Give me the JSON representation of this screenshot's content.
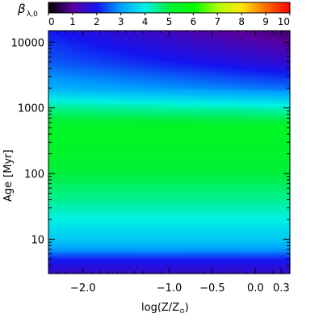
{
  "chart_data": {
    "type": "heatmap",
    "title": "",
    "colorbar": {
      "label": "β",
      "label_sub": "λ,0",
      "min": 0,
      "max": 10,
      "ticks": [
        "0",
        "1",
        "2",
        "3",
        "4",
        "5",
        "6",
        "7",
        "8",
        "9",
        "10"
      ],
      "colormap": "rainbow (black-purple-blue-cyan-green-yellow-orange-red)"
    },
    "xlabel": "log(Z/Z",
    "xlabel_sub": "⊙",
    "xlabel_close": ")",
    "ylabel": "Age",
    "ylabel_unit": "[Myr]",
    "x_scale": "linear",
    "y_scale": "log",
    "xlim": [
      -2.4,
      0.4
    ],
    "ylim": [
      3,
      15000
    ],
    "x_ticks": [
      {
        "value": -2.0,
        "label": "−2.0"
      },
      {
        "value": -1.0,
        "label": "−1.0"
      },
      {
        "value": -0.5,
        "label": "−0.5"
      },
      {
        "value": 0.0,
        "label": "0.0"
      },
      {
        "value": 0.3,
        "label": "0.3"
      }
    ],
    "y_ticks": [
      {
        "value": 10,
        "label": "10"
      },
      {
        "value": 100,
        "label": "100"
      },
      {
        "value": 1000,
        "label": "1000"
      },
      {
        "value": 10000,
        "label": "10000"
      }
    ],
    "age_profile_at_low_Z": [
      {
        "age": 3,
        "beta": 1.5
      },
      {
        "age": 4,
        "beta": 1.8
      },
      {
        "age": 5,
        "beta": 2.1
      },
      {
        "age": 6,
        "beta": 2.6
      },
      {
        "age": 7,
        "beta": 3.0
      },
      {
        "age": 10,
        "beta": 3.5
      },
      {
        "age": 20,
        "beta": 4.0
      },
      {
        "age": 40,
        "beta": 4.5
      },
      {
        "age": 100,
        "beta": 5.0
      },
      {
        "age": 200,
        "beta": 5.3
      },
      {
        "age": 500,
        "beta": 5.4
      },
      {
        "age": 1000,
        "beta": 4.5
      },
      {
        "age": 2000,
        "beta": 3.2
      },
      {
        "age": 5000,
        "beta": 2.5
      },
      {
        "age": 10000,
        "beta": 2.2
      },
      {
        "age": 15000,
        "beta": 2.0
      }
    ],
    "high_Z_old_age_drop": 1.3,
    "grid": false
  }
}
